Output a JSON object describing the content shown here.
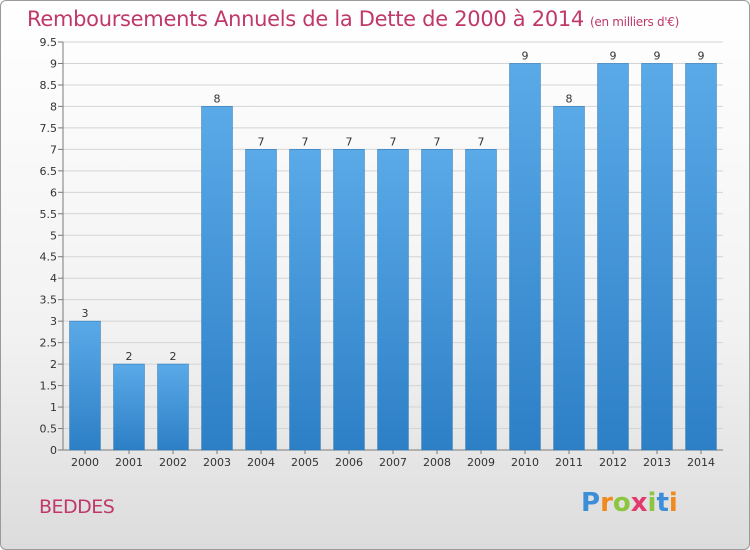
{
  "chart_data": {
    "type": "bar",
    "title": "Remboursements Annuels de la Dette de 2000 à 2014",
    "subtitle": "(en milliers d'€)",
    "categories": [
      "2000",
      "2001",
      "2002",
      "2003",
      "2004",
      "2005",
      "2006",
      "2007",
      "2008",
      "2009",
      "2010",
      "2011",
      "2012",
      "2013",
      "2014"
    ],
    "values": [
      3,
      2,
      2,
      8,
      7,
      7,
      7,
      7,
      7,
      7,
      9,
      8,
      9,
      9,
      9
    ],
    "ylim": [
      0,
      9.5
    ],
    "yticks": [
      0,
      0.5,
      1,
      1.5,
      2,
      2.5,
      3,
      3.5,
      4,
      4.5,
      5,
      5.5,
      6,
      6.5,
      7,
      7.5,
      8,
      8.5,
      9,
      9.5
    ],
    "ytick_labels": [
      "0",
      "0.5",
      "1",
      "1.5",
      "2",
      "2.5",
      "3",
      "3.5",
      "4",
      "4.5",
      "5",
      "5.5",
      "6",
      "6.5",
      "7",
      "7.5",
      "8",
      "8.5",
      "9",
      "9.5"
    ],
    "grid": true,
    "legend": "none",
    "bar_color": "#4a9fe0"
  },
  "location_label": "BEDDES",
  "logo_text": "Proxiti"
}
